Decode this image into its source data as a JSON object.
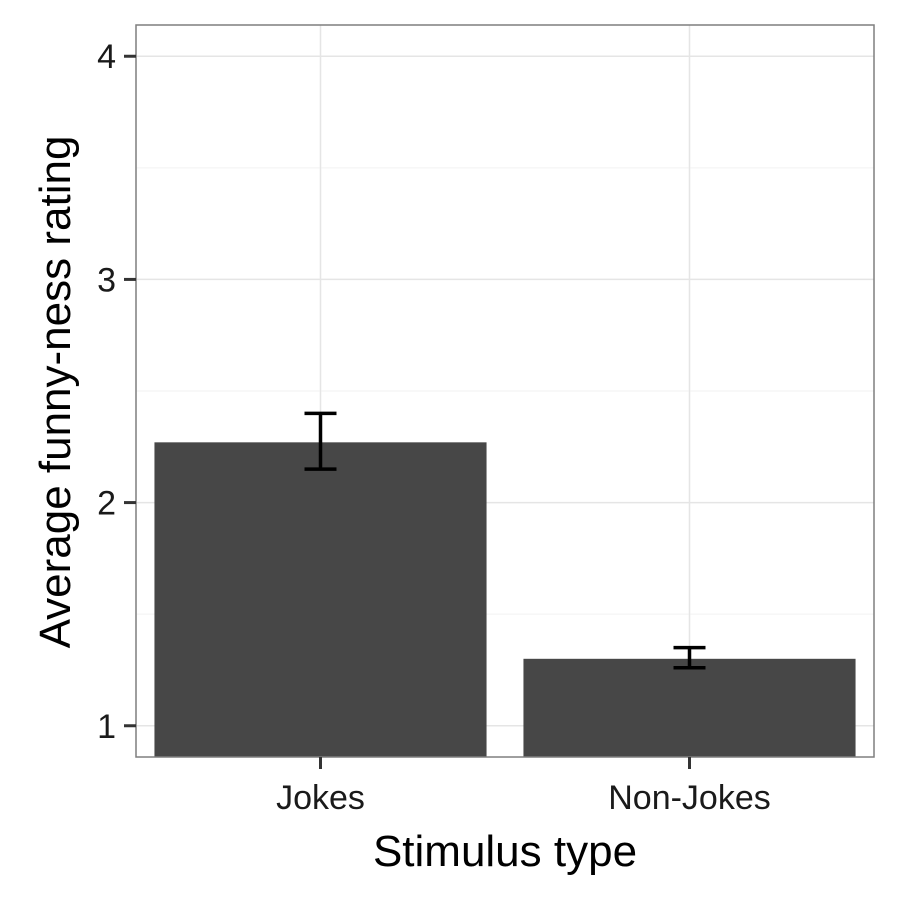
{
  "chart_data": {
    "type": "bar",
    "title": "",
    "xlabel": "Stimulus type",
    "ylabel": "Average funny-ness rating",
    "categories": [
      "Jokes",
      "Non-Jokes"
    ],
    "values": [
      2.27,
      1.3
    ],
    "error_bars": [
      {
        "low": 2.15,
        "high": 2.4
      },
      {
        "low": 1.26,
        "high": 1.35
      }
    ],
    "ylim": [
      0.86,
      4.14
    ],
    "y_baseline": 0.86,
    "yticks": [
      1,
      2,
      3,
      4
    ],
    "y_tick_labels": [
      "1",
      "2",
      "3",
      "4"
    ],
    "grid": true,
    "legend": "none",
    "colors": {
      "bar": "#474747",
      "grid_major": "#e5e5e5",
      "grid_minor": "#f2f2f2",
      "panel_border": "#7f7f7f",
      "error_bar": "#000000",
      "tick": "#333333"
    }
  }
}
